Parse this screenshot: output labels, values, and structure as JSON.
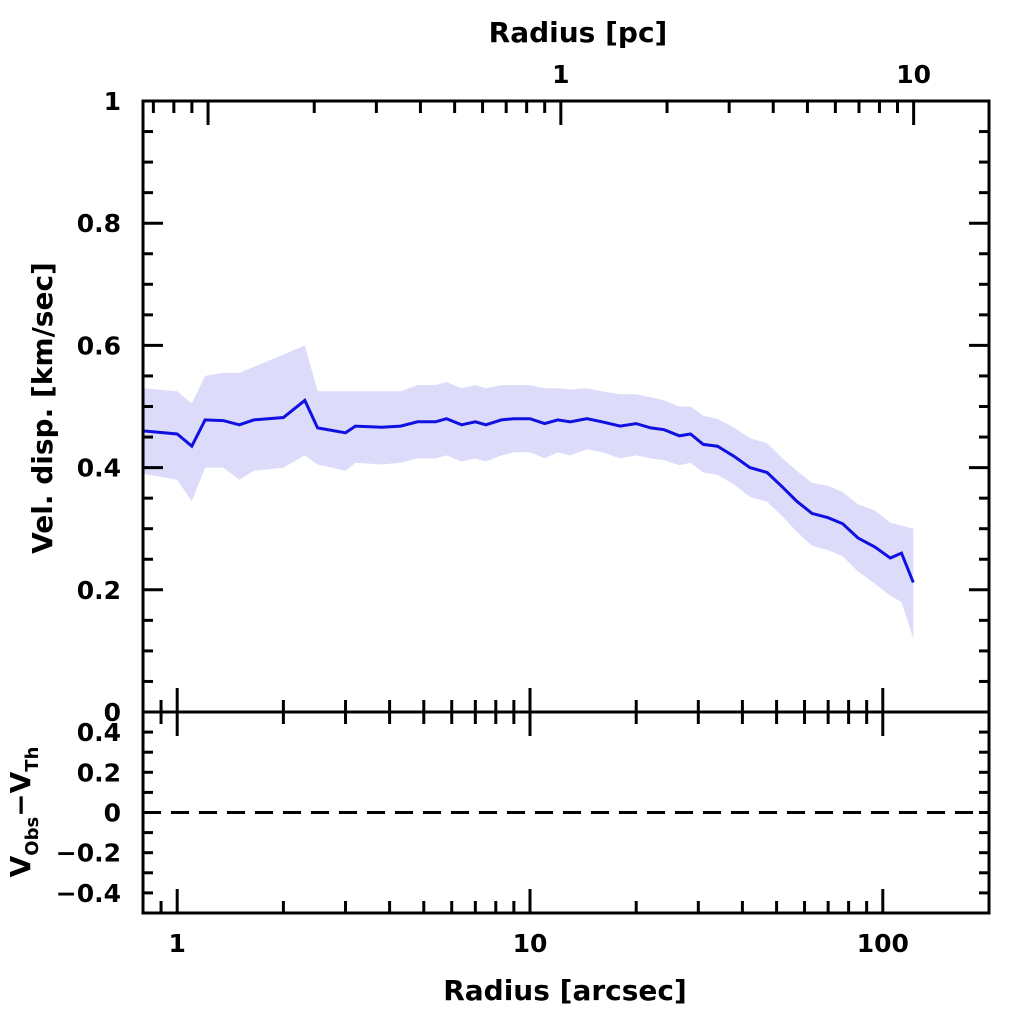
{
  "chart_data": {
    "type": "line",
    "colors": {
      "line": "#1010e0",
      "band": "#dcdcfa",
      "axes": "#000000"
    },
    "top_xaxis": {
      "label": "Radius [pc]",
      "scale": "log",
      "ticks": [
        1,
        10
      ],
      "tick_labels": [
        "1",
        "10"
      ]
    },
    "main_panel": {
      "ylabel": "Vel. disp. [km/sec]",
      "ylim": [
        0,
        1
      ],
      "yticks": [
        0,
        0.2,
        0.4,
        0.6,
        0.8,
        1
      ],
      "ytick_labels": [
        "0",
        "0.2",
        "0.4",
        "0.6",
        "0.8",
        "1"
      ],
      "series": [
        {
          "style": "line with shaded uncertainty band",
          "x": [
            0.8,
            1.0,
            1.1,
            1.2,
            1.35,
            1.5,
            1.65,
            2.0,
            2.3,
            2.5,
            3.0,
            3.2,
            3.8,
            4.3,
            4.8,
            5.4,
            5.8,
            6.4,
            7.0,
            7.5,
            8.3,
            9.0,
            10.0,
            11.0,
            12.0,
            13.0,
            14.5,
            16.0,
            18.0,
            20.0,
            22.0,
            24.0,
            26.5,
            28.5,
            31.0,
            34.0,
            38.0,
            42.0,
            47.0,
            52.0,
            57.0,
            63.0,
            70.0,
            77.0,
            85.0,
            95.0,
            105.0,
            113.0,
            122.0
          ],
          "y": [
            0.46,
            0.455,
            0.435,
            0.478,
            0.477,
            0.47,
            0.478,
            0.482,
            0.51,
            0.465,
            0.457,
            0.468,
            0.466,
            0.468,
            0.475,
            0.475,
            0.48,
            0.47,
            0.475,
            0.47,
            0.478,
            0.48,
            0.48,
            0.472,
            0.478,
            0.475,
            0.48,
            0.475,
            0.468,
            0.472,
            0.465,
            0.462,
            0.452,
            0.455,
            0.438,
            0.435,
            0.418,
            0.4,
            0.392,
            0.368,
            0.345,
            0.325,
            0.318,
            0.308,
            0.285,
            0.27,
            0.252,
            0.26,
            0.212
          ],
          "y_upper": [
            0.53,
            0.525,
            0.505,
            0.55,
            0.555,
            0.555,
            0.565,
            0.585,
            0.6,
            0.525,
            0.525,
            0.525,
            0.525,
            0.525,
            0.535,
            0.535,
            0.54,
            0.53,
            0.535,
            0.53,
            0.535,
            0.535,
            0.535,
            0.53,
            0.53,
            0.528,
            0.53,
            0.525,
            0.52,
            0.52,
            0.515,
            0.51,
            0.5,
            0.5,
            0.485,
            0.48,
            0.465,
            0.448,
            0.44,
            0.415,
            0.395,
            0.375,
            0.37,
            0.36,
            0.34,
            0.33,
            0.31,
            0.305,
            0.3
          ],
          "y_lower": [
            0.39,
            0.38,
            0.345,
            0.4,
            0.4,
            0.38,
            0.395,
            0.4,
            0.42,
            0.405,
            0.395,
            0.408,
            0.405,
            0.408,
            0.415,
            0.415,
            0.42,
            0.41,
            0.415,
            0.41,
            0.42,
            0.425,
            0.425,
            0.415,
            0.425,
            0.42,
            0.43,
            0.425,
            0.415,
            0.42,
            0.415,
            0.412,
            0.404,
            0.408,
            0.392,
            0.388,
            0.372,
            0.352,
            0.344,
            0.32,
            0.295,
            0.272,
            0.265,
            0.255,
            0.23,
            0.21,
            0.19,
            0.18,
            0.12
          ]
        }
      ]
    },
    "residual_panel": {
      "ylabel_main": "V",
      "ylabel_sub1": "Obs",
      "ylabel_mid": "−V",
      "ylabel_sub2": "Th",
      "ylim": [
        -0.5,
        0.5
      ],
      "yticks": [
        -0.4,
        -0.2,
        0,
        0.2,
        0.4
      ],
      "ytick_labels": [
        "−0.4",
        "−0.2",
        "0",
        "0.2",
        "0.4"
      ],
      "reference_line": {
        "y": 0,
        "style": "dashed"
      }
    },
    "bottom_xaxis": {
      "label": "Radius [arcsec]",
      "scale": "log",
      "xlim": [
        0.8,
        200
      ],
      "ticks": [
        1,
        10,
        100
      ],
      "tick_labels": [
        "1",
        "10",
        "100"
      ]
    }
  }
}
